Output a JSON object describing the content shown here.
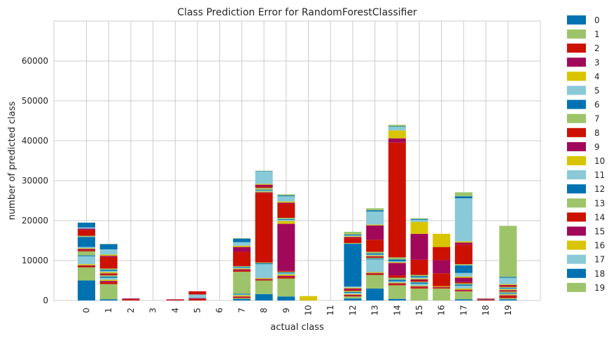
{
  "chart_data": {
    "type": "bar",
    "stacked": true,
    "title": "Class Prediction Error for RandomForestClassifier",
    "xlabel": "actual class",
    "ylabel": "number of predicted class",
    "categories": [
      "0",
      "1",
      "2",
      "3",
      "4",
      "5",
      "6",
      "7",
      "8",
      "9",
      "10",
      "11",
      "12",
      "13",
      "14",
      "15",
      "16",
      "17",
      "18",
      "19"
    ],
    "ylim": [
      0,
      70000
    ],
    "yticks": [
      0,
      10000,
      20000,
      30000,
      40000,
      50000,
      60000
    ],
    "grid": true,
    "legend_position": "outside-right",
    "palette": [
      "#0072b2",
      "#9dc46a",
      "#cc1100",
      "#a1085a",
      "#d9c400",
      "#89c9d8"
    ],
    "series": [
      {
        "name": "0",
        "values": [
          5000,
          300,
          0,
          0,
          0,
          0,
          0,
          400,
          1600,
          1000,
          0,
          0,
          500,
          3000,
          400,
          0,
          0,
          300,
          0,
          300
        ]
      },
      {
        "name": "1",
        "values": [
          3300,
          3800,
          0,
          0,
          0,
          0,
          0,
          200,
          3400,
          4500,
          0,
          0,
          500,
          3400,
          3400,
          3000,
          3000,
          2000,
          0,
          300
        ]
      },
      {
        "name": "2",
        "values": [
          300,
          500,
          300,
          0,
          200,
          400,
          0,
          200,
          200,
          400,
          0,
          0,
          200,
          300,
          300,
          300,
          200,
          200,
          200,
          500
        ]
      },
      {
        "name": "3",
        "values": [
          200,
          300,
          200,
          0,
          100,
          200,
          0,
          200,
          200,
          300,
          0,
          0,
          200,
          200,
          200,
          200,
          200,
          200,
          100,
          200
        ]
      },
      {
        "name": "4",
        "values": [
          300,
          300,
          0,
          0,
          0,
          0,
          0,
          300,
          200,
          300,
          800,
          0,
          200,
          200,
          200,
          200,
          200,
          300,
          0,
          200
        ]
      },
      {
        "name": "5",
        "values": [
          2000,
          500,
          0,
          0,
          0,
          900,
          0,
          200,
          3500,
          300,
          0,
          0,
          300,
          3200,
          300,
          500,
          0,
          700,
          0,
          200
        ]
      },
      {
        "name": "6",
        "values": [
          200,
          300,
          0,
          0,
          0,
          0,
          0,
          200,
          200,
          200,
          0,
          0,
          200,
          200,
          400,
          300,
          0,
          300,
          100,
          200
        ]
      },
      {
        "name": "7",
        "values": [
          1000,
          300,
          0,
          0,
          0,
          0,
          0,
          5500,
          200,
          200,
          0,
          0,
          300,
          200,
          500,
          200,
          0,
          300,
          0,
          300
        ]
      },
      {
        "name": "8",
        "values": [
          300,
          300,
          0,
          0,
          0,
          0,
          0,
          300,
          17400,
          200,
          0,
          0,
          300,
          200,
          600,
          300,
          3200,
          300,
          100,
          200
        ]
      },
      {
        "name": "9",
        "values": [
          300,
          200,
          0,
          0,
          0,
          0,
          0,
          300,
          200,
          11800,
          0,
          0,
          300,
          200,
          3100,
          300,
          3300,
          1100,
          0,
          200
        ]
      },
      {
        "name": "10",
        "values": [
          200,
          300,
          0,
          0,
          0,
          0,
          0,
          200,
          200,
          700,
          300,
          0,
          200,
          200,
          200,
          200,
          0,
          300,
          0,
          200
        ]
      },
      {
        "name": "11",
        "values": [
          300,
          300,
          0,
          0,
          0,
          0,
          0,
          200,
          200,
          300,
          0,
          0,
          300,
          200,
          200,
          300,
          0,
          900,
          0,
          200
        ]
      },
      {
        "name": "12",
        "values": [
          2500,
          300,
          0,
          0,
          0,
          0,
          0,
          200,
          200,
          200,
          0,
          0,
          10700,
          300,
          500,
          300,
          0,
          1900,
          0,
          200
        ]
      },
      {
        "name": "13",
        "values": [
          300,
          300,
          0,
          0,
          0,
          0,
          0,
          200,
          500,
          300,
          0,
          0,
          200,
          400,
          500,
          300,
          0,
          300,
          0,
          200
        ]
      },
      {
        "name": "14",
        "values": [
          1500,
          2900,
          0,
          0,
          0,
          800,
          0,
          3600,
          300,
          3500,
          0,
          0,
          1200,
          3000,
          28800,
          3800,
          3300,
          4900,
          0,
          300
        ]
      },
      {
        "name": "15",
        "values": [
          300,
          300,
          0,
          0,
          0,
          0,
          0,
          1200,
          500,
          300,
          0,
          0,
          300,
          3600,
          1000,
          6500,
          0,
          500,
          0,
          200
        ]
      },
      {
        "name": "16",
        "values": [
          0,
          300,
          0,
          0,
          0,
          0,
          0,
          300,
          200,
          300,
          0,
          0,
          200,
          200,
          2000,
          3000,
          3300,
          300,
          0,
          200
        ]
      },
      {
        "name": "17",
        "values": [
          300,
          1300,
          0,
          0,
          0,
          0,
          0,
          900,
          3100,
          1300,
          0,
          0,
          200,
          3300,
          900,
          500,
          0,
          10800,
          0,
          1600
        ]
      },
      {
        "name": "18",
        "values": [
          1200,
          1300,
          0,
          0,
          0,
          0,
          0,
          900,
          100,
          200,
          0,
          0,
          200,
          300,
          100,
          200,
          0,
          500,
          0,
          200
        ]
      },
      {
        "name": "19",
        "values": [
          0,
          100,
          0,
          0,
          0,
          0,
          0,
          100,
          100,
          300,
          0,
          0,
          700,
          500,
          400,
          200,
          0,
          1000,
          0,
          12800
        ]
      }
    ]
  }
}
